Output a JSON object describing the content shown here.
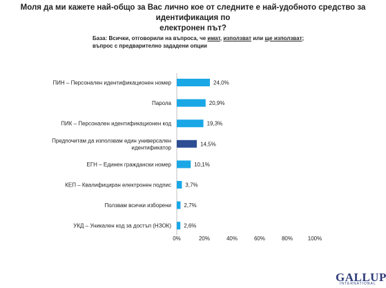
{
  "title_line1": "Моля да ми кажете най-общо за Вас лично кое от следните е най-удобното средство за идентификация по",
  "title_line2": "електронен път?",
  "base": {
    "prefix": "База: Всички, отговорили на въпроса, че ",
    "w1": "имат",
    "sep1": ", ",
    "w2": "използват",
    "sep2": " или ",
    "w3": "ще използват",
    "suffix": ";",
    "line2": "въпрос с предварително зададени опции"
  },
  "chart_data": {
    "type": "bar",
    "orientation": "horizontal",
    "categories": [
      [
        "ПИН – Персонален идентификационен номер"
      ],
      [
        "Парола"
      ],
      [
        "ПИК – Персонален идентификационен код"
      ],
      [
        "Предпочитам да използвам един универсален",
        "идентификатор"
      ],
      [
        "ЕГН – Единен граждански номер"
      ],
      [
        "КЕП – Квалифициран електронен подпис"
      ],
      [
        "Ползвам всички изборени"
      ],
      [
        "УКД – Уникален код за достъп (НЗОК)"
      ]
    ],
    "values": [
      24.0,
      20.9,
      19.3,
      14.5,
      10.1,
      3.7,
      2.7,
      2.6
    ],
    "value_labels": [
      "24,0%",
      "20,9%",
      "19,3%",
      "14,5%",
      "10,1%",
      "3,7%",
      "2,7%",
      "2,6%"
    ],
    "highlight_index": 3,
    "xlim": [
      0,
      100
    ],
    "ticks": [
      "0%",
      "20%",
      "40%",
      "60%",
      "80%",
      "100%"
    ],
    "colors": {
      "default": "#1aa7e6",
      "highlight": "#2d4e93"
    }
  },
  "logo": {
    "word": "GALLUP",
    "sub": "INTERNATIONAL"
  }
}
